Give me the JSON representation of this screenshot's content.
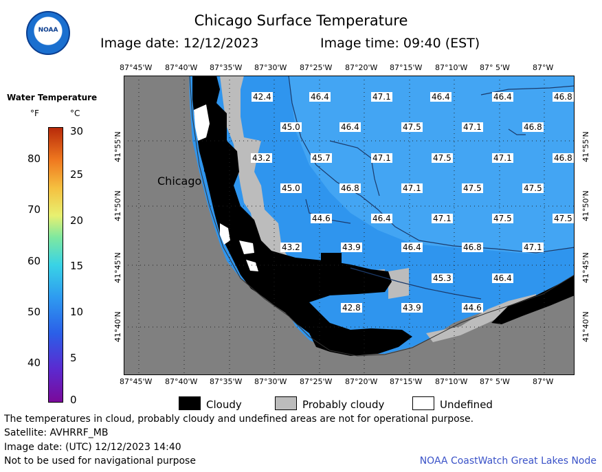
{
  "header": {
    "logo_text": "NOAA",
    "title": "Chicago Surface Temperature",
    "image_date": "Image date: 12/12/2023",
    "image_time": "Image time: 09:40 (EST)"
  },
  "colorbar": {
    "title": "Water Temperature",
    "unit_f": "°F",
    "unit_c": "°C",
    "f_labels": [
      "80",
      "70",
      "60",
      "50",
      "40"
    ],
    "c_labels": [
      "30",
      "25",
      "20",
      "15",
      "10",
      "5",
      "0"
    ]
  },
  "map": {
    "lon_labels": [
      "87°45'W",
      "87°40'W",
      "87°35'W",
      "87°30'W",
      "87°25'W",
      "87°20'W",
      "87°15'W",
      "87°10'W",
      "87° 5'W",
      "87°W"
    ],
    "lat_labels": [
      "41°55'N",
      "41°50'N",
      "41°45'N",
      "41°40'N"
    ],
    "city_label": "Chicago",
    "temperatures": [
      "42.4",
      "46.4",
      "47.1",
      "46.4",
      "46.4",
      "46.8",
      "45.0",
      "46.4",
      "47.5",
      "47.1",
      "46.8",
      "43.2",
      "45.7",
      "47.1",
      "47.5",
      "47.1",
      "46.8",
      "45.0",
      "46.8",
      "47.1",
      "47.5",
      "47.5",
      "44.6",
      "46.4",
      "47.1",
      "47.5",
      "47.5",
      "43.2",
      "43.9",
      "46.4",
      "46.8",
      "47.1",
      "45.3",
      "46.4",
      "42.8",
      "43.9",
      "44.6"
    ],
    "colors": {
      "land": "#808080",
      "water": "#2f95ee",
      "cloud": "#000000",
      "probably_cloudy": "#bcbcbc",
      "undefined": "#ffffff"
    }
  },
  "legend": {
    "cloudy": "Cloudy",
    "probably_cloudy": "Probably cloudy",
    "undefined": "Undefined"
  },
  "footer": {
    "note": "The temperatures in cloud, probably cloudy and undefined areas are not for operational purpose.",
    "satellite": "Satellite: AVHRRF_MB",
    "utc_date": "Image date: (UTC) 12/12/2023  14:40",
    "nav": "Not to be used for navigational purpose",
    "credit": "NOAA CoastWatch Great Lakes Node"
  }
}
